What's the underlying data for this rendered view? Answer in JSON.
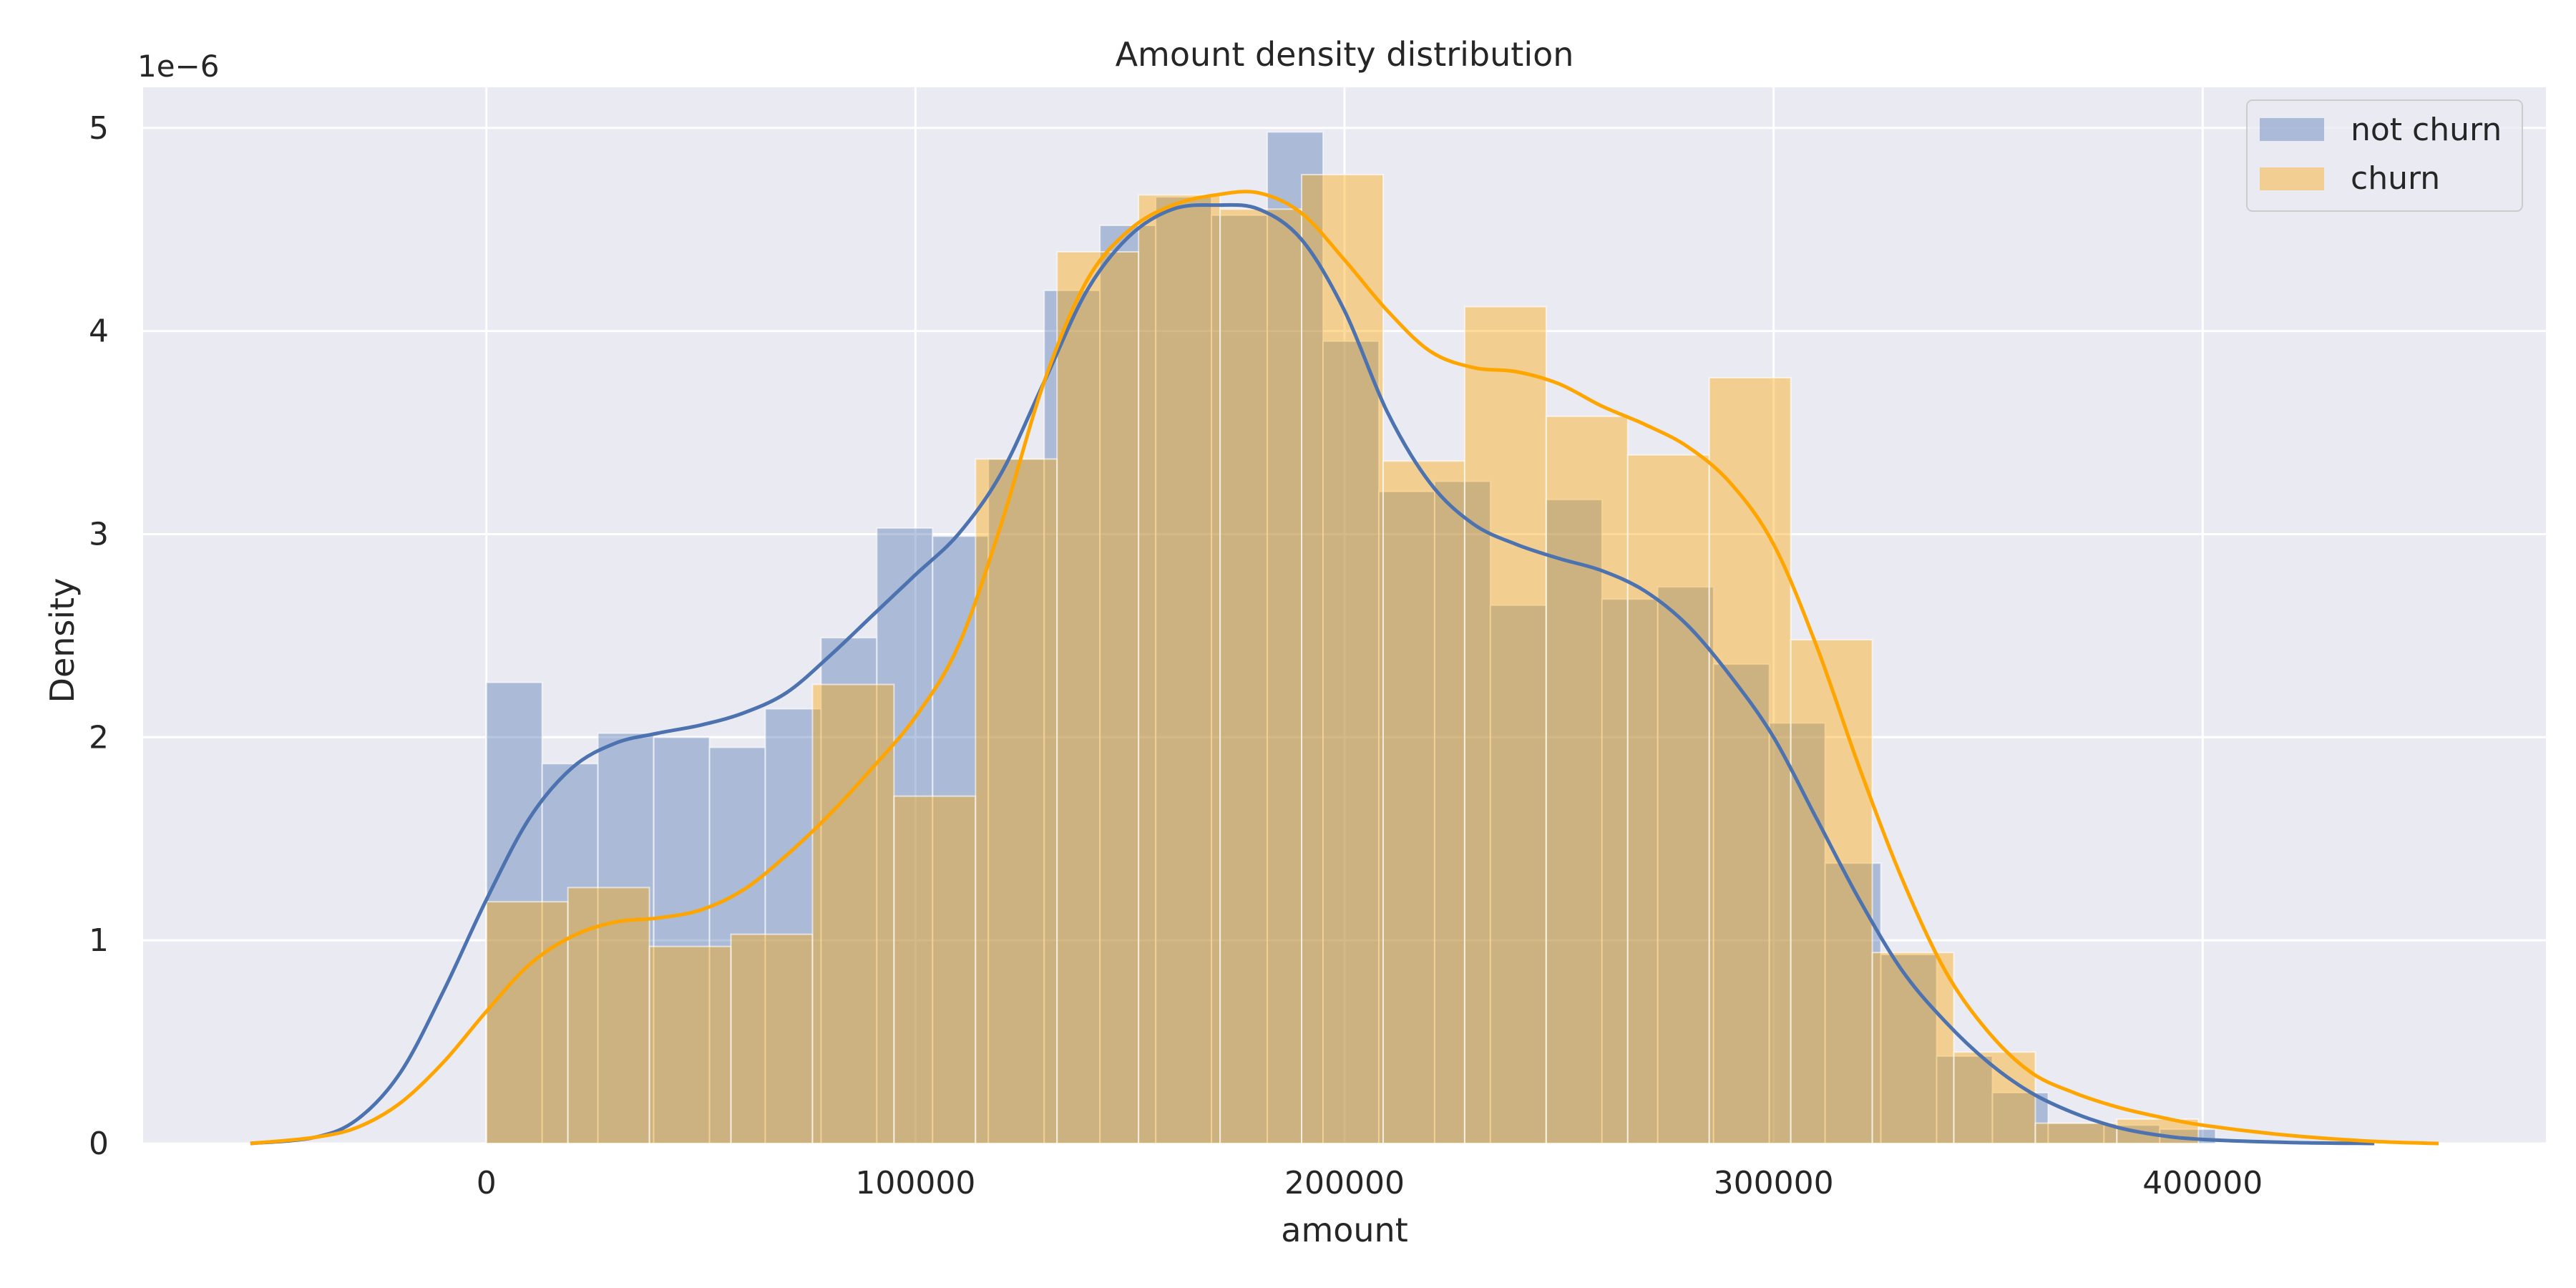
{
  "chart_data": {
    "type": "histogram",
    "title": "Amount density distribution",
    "xlabel": "amount",
    "ylabel": "Density",
    "y_offset_text": "1e−6",
    "y_scale": 1e-06,
    "xlim": [
      -80000,
      480000
    ],
    "ylim": [
      0,
      5.2
    ],
    "x_ticks": [
      0,
      100000,
      200000,
      300000,
      400000
    ],
    "y_ticks": [
      0,
      1,
      2,
      3,
      4,
      5
    ],
    "grid": true,
    "legend_placement": "top-right",
    "colors": {
      "background": "#eaeaf2",
      "grid": "#ffffff",
      "not_churn": "#4c72b0",
      "churn": "#ffa500"
    },
    "series": [
      {
        "name": "not churn",
        "color": "#4c72b0",
        "bin_edges": [
          0,
          13000,
          26000,
          39000,
          52000,
          65000,
          78000,
          91000,
          104000,
          117000,
          130000,
          143000,
          156000,
          169000,
          182000,
          195000,
          208000,
          221000,
          234000,
          247000,
          260000,
          273000,
          286000,
          299000,
          312000,
          325000,
          338000,
          351000,
          364000,
          377000,
          390000,
          403000
        ],
        "values": [
          2.27,
          1.87,
          2.02,
          2.0,
          1.95,
          2.14,
          2.49,
          3.03,
          2.99,
          3.37,
          4.2,
          4.52,
          4.66,
          4.57,
          4.98,
          3.95,
          3.21,
          3.26,
          2.65,
          3.17,
          2.68,
          2.74,
          2.36,
          2.07,
          1.38,
          0.93,
          0.43,
          0.25,
          0.1,
          0.09,
          0.07
        ],
        "kde": {
          "x": [
            -55000,
            -40000,
            -30000,
            -20000,
            -10000,
            0,
            10000,
            20000,
            30000,
            40000,
            50000,
            60000,
            70000,
            80000,
            90000,
            100000,
            110000,
            120000,
            130000,
            140000,
            150000,
            160000,
            170000,
            180000,
            190000,
            200000,
            210000,
            220000,
            230000,
            240000,
            250000,
            260000,
            270000,
            280000,
            290000,
            300000,
            310000,
            320000,
            330000,
            340000,
            350000,
            360000,
            370000,
            380000,
            390000,
            400000,
            420000,
            440000
          ],
          "y": [
            0.0,
            0.03,
            0.12,
            0.35,
            0.75,
            1.2,
            1.6,
            1.85,
            1.97,
            2.02,
            2.06,
            2.12,
            2.22,
            2.4,
            2.6,
            2.8,
            3.0,
            3.3,
            3.75,
            4.2,
            4.47,
            4.6,
            4.62,
            4.6,
            4.45,
            4.1,
            3.6,
            3.25,
            3.05,
            2.95,
            2.88,
            2.82,
            2.72,
            2.55,
            2.3,
            2.0,
            1.6,
            1.2,
            0.85,
            0.6,
            0.4,
            0.25,
            0.15,
            0.08,
            0.04,
            0.02,
            0.005,
            0.0
          ]
        }
      },
      {
        "name": "churn",
        "color": "#ffa500",
        "bin_edges": [
          0,
          19000,
          38000,
          57000,
          76000,
          95000,
          114000,
          133000,
          152000,
          171000,
          190000,
          209000,
          228000,
          247000,
          266000,
          285000,
          304000,
          323000,
          342000,
          361000,
          380000,
          399000
        ],
        "values": [
          1.19,
          1.26,
          0.97,
          1.03,
          2.26,
          1.71,
          3.37,
          4.39,
          4.67,
          4.6,
          4.77,
          3.36,
          4.12,
          3.58,
          3.39,
          3.77,
          2.48,
          0.94,
          0.45,
          0.1,
          0.12
        ],
        "kde": {
          "x": [
            -55000,
            -40000,
            -30000,
            -20000,
            -10000,
            0,
            10000,
            20000,
            30000,
            40000,
            50000,
            60000,
            70000,
            80000,
            90000,
            100000,
            110000,
            120000,
            130000,
            140000,
            150000,
            160000,
            170000,
            180000,
            190000,
            200000,
            210000,
            220000,
            230000,
            240000,
            250000,
            260000,
            270000,
            280000,
            290000,
            300000,
            310000,
            320000,
            330000,
            340000,
            350000,
            360000,
            370000,
            380000,
            390000,
            400000,
            420000,
            440000,
            455000
          ],
          "y": [
            0.0,
            0.03,
            0.08,
            0.2,
            0.4,
            0.65,
            0.88,
            1.02,
            1.09,
            1.11,
            1.15,
            1.25,
            1.42,
            1.62,
            1.85,
            2.1,
            2.45,
            3.05,
            3.75,
            4.25,
            4.5,
            4.62,
            4.67,
            4.68,
            4.58,
            4.35,
            4.1,
            3.9,
            3.82,
            3.8,
            3.74,
            3.63,
            3.54,
            3.43,
            3.25,
            2.95,
            2.45,
            1.85,
            1.3,
            0.85,
            0.55,
            0.35,
            0.25,
            0.18,
            0.13,
            0.09,
            0.04,
            0.01,
            0.0
          ]
        }
      }
    ]
  }
}
